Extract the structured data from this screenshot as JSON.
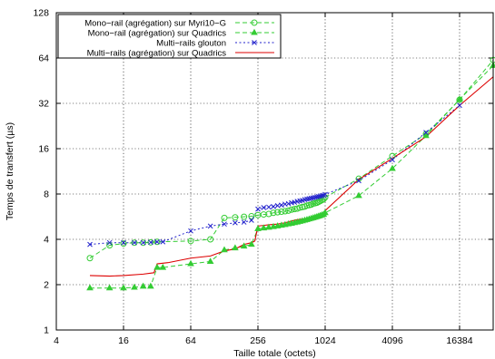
{
  "chart_data": {
    "type": "line",
    "title": "",
    "xlabel": "Taille totale (octets)",
    "ylabel": "Temps de transfert (µs)",
    "xscale": "log2",
    "yscale": "log2",
    "xlim": [
      4,
      32768
    ],
    "ylim": [
      1,
      128
    ],
    "xticks": [
      4,
      16,
      64,
      256,
      1024,
      4096,
      16384
    ],
    "xtick_labels": [
      "4",
      "16",
      "64",
      "256",
      "1024",
      "4096",
      "16384"
    ],
    "yticks": [
      1,
      2,
      4,
      8,
      16,
      32,
      64,
      128
    ],
    "ytick_labels": [
      "1",
      "2",
      "4",
      "8",
      "16",
      "32",
      "64",
      "128"
    ],
    "grid": true,
    "legend_position": "top-left",
    "series": [
      {
        "name": "Mono−rail (agrégation) sur Myri10−G",
        "color": "#33cc33",
        "dash": "dashed",
        "marker": "circle",
        "points": [
          [
            8,
            3.0
          ],
          [
            12,
            3.65
          ],
          [
            16,
            3.75
          ],
          [
            20,
            3.8
          ],
          [
            24,
            3.8
          ],
          [
            28,
            3.82
          ],
          [
            32,
            3.85
          ],
          [
            64,
            3.9
          ],
          [
            96,
            4.0
          ],
          [
            128,
            5.55
          ],
          [
            160,
            5.6
          ],
          [
            192,
            5.65
          ],
          [
            224,
            5.7
          ],
          [
            256,
            5.8
          ],
          [
            288,
            5.85
          ],
          [
            320,
            5.9
          ],
          [
            352,
            6.0
          ],
          [
            384,
            6.05
          ],
          [
            416,
            6.1
          ],
          [
            448,
            6.15
          ],
          [
            480,
            6.2
          ],
          [
            512,
            6.3
          ],
          [
            544,
            6.35
          ],
          [
            576,
            6.4
          ],
          [
            608,
            6.5
          ],
          [
            640,
            6.55
          ],
          [
            672,
            6.6
          ],
          [
            704,
            6.7
          ],
          [
            736,
            6.75
          ],
          [
            768,
            6.8
          ],
          [
            800,
            6.9
          ],
          [
            832,
            6.95
          ],
          [
            864,
            7.0
          ],
          [
            896,
            7.1
          ],
          [
            928,
            7.2
          ],
          [
            960,
            7.3
          ],
          [
            992,
            7.4
          ],
          [
            1024,
            7.6
          ],
          [
            2048,
            10.1
          ],
          [
            4096,
            14.3
          ],
          [
            8192,
            20.0
          ],
          [
            16384,
            33.8
          ],
          [
            32768,
            62.0
          ]
        ]
      },
      {
        "name": "Mono−rail (agrégation) sur Quadrics",
        "color": "#33cc33",
        "dash": "dashed",
        "marker": "triangle",
        "points": [
          [
            8,
            1.9
          ],
          [
            12,
            1.9
          ],
          [
            16,
            1.9
          ],
          [
            20,
            1.92
          ],
          [
            24,
            1.95
          ],
          [
            28,
            1.95
          ],
          [
            32,
            2.6
          ],
          [
            36,
            2.6
          ],
          [
            64,
            2.75
          ],
          [
            96,
            2.85
          ],
          [
            128,
            3.4
          ],
          [
            160,
            3.5
          ],
          [
            192,
            3.6
          ],
          [
            224,
            3.7
          ],
          [
            256,
            4.7
          ],
          [
            288,
            4.75
          ],
          [
            320,
            4.8
          ],
          [
            352,
            4.85
          ],
          [
            384,
            4.9
          ],
          [
            416,
            4.95
          ],
          [
            448,
            5.0
          ],
          [
            480,
            5.05
          ],
          [
            512,
            5.1
          ],
          [
            544,
            5.15
          ],
          [
            576,
            5.2
          ],
          [
            608,
            5.25
          ],
          [
            640,
            5.3
          ],
          [
            672,
            5.35
          ],
          [
            704,
            5.4
          ],
          [
            736,
            5.45
          ],
          [
            768,
            5.5
          ],
          [
            800,
            5.55
          ],
          [
            832,
            5.6
          ],
          [
            864,
            5.65
          ],
          [
            896,
            5.7
          ],
          [
            928,
            5.75
          ],
          [
            960,
            5.8
          ],
          [
            992,
            5.85
          ],
          [
            1024,
            6.0
          ],
          [
            2048,
            7.8
          ],
          [
            4096,
            11.8
          ],
          [
            8192,
            19.5
          ],
          [
            16384,
            34.0
          ],
          [
            32768,
            57.0
          ]
        ]
      },
      {
        "name": "Multi−rails glouton",
        "color": "#2222cc",
        "dash": "dotted",
        "marker": "cross",
        "points": [
          [
            8,
            3.7
          ],
          [
            12,
            3.8
          ],
          [
            16,
            3.8
          ],
          [
            20,
            3.8
          ],
          [
            24,
            3.8
          ],
          [
            28,
            3.82
          ],
          [
            32,
            3.85
          ],
          [
            36,
            3.85
          ],
          [
            64,
            4.55
          ],
          [
            96,
            4.9
          ],
          [
            128,
            5.05
          ],
          [
            160,
            5.15
          ],
          [
            192,
            5.2
          ],
          [
            224,
            5.35
          ],
          [
            256,
            6.35
          ],
          [
            288,
            6.5
          ],
          [
            320,
            6.55
          ],
          [
            352,
            6.6
          ],
          [
            384,
            6.7
          ],
          [
            416,
            6.75
          ],
          [
            448,
            6.85
          ],
          [
            480,
            6.9
          ],
          [
            512,
            7.0
          ],
          [
            544,
            7.05
          ],
          [
            576,
            7.15
          ],
          [
            608,
            7.2
          ],
          [
            640,
            7.25
          ],
          [
            672,
            7.35
          ],
          [
            704,
            7.4
          ],
          [
            736,
            7.45
          ],
          [
            768,
            7.5
          ],
          [
            800,
            7.55
          ],
          [
            832,
            7.6
          ],
          [
            864,
            7.65
          ],
          [
            896,
            7.7
          ],
          [
            928,
            7.75
          ],
          [
            960,
            7.8
          ],
          [
            992,
            7.85
          ],
          [
            1024,
            7.95
          ],
          [
            2048,
            9.8
          ],
          [
            4096,
            13.5
          ],
          [
            8192,
            20.5
          ],
          [
            16384,
            31.0
          ]
        ]
      },
      {
        "name": "Multi−rails (agrégation) sur Quadrics",
        "color": "#dd0000",
        "dash": "solid",
        "marker": "none",
        "points": [
          [
            8,
            2.3
          ],
          [
            12,
            2.28
          ],
          [
            16,
            2.3
          ],
          [
            24,
            2.35
          ],
          [
            30,
            2.4
          ],
          [
            32,
            2.75
          ],
          [
            40,
            2.8
          ],
          [
            64,
            3.0
          ],
          [
            96,
            3.1
          ],
          [
            128,
            3.35
          ],
          [
            160,
            3.45
          ],
          [
            192,
            3.7
          ],
          [
            224,
            3.8
          ],
          [
            240,
            3.9
          ],
          [
            256,
            4.9
          ],
          [
            288,
            4.95
          ],
          [
            320,
            5.0
          ],
          [
            384,
            5.05
          ],
          [
            448,
            5.15
          ],
          [
            512,
            5.3
          ],
          [
            576,
            5.4
          ],
          [
            640,
            5.45
          ],
          [
            704,
            5.5
          ],
          [
            768,
            5.6
          ],
          [
            832,
            5.65
          ],
          [
            896,
            5.75
          ],
          [
            960,
            5.85
          ],
          [
            1024,
            6.2
          ],
          [
            2048,
            10.0
          ],
          [
            4096,
            13.8
          ],
          [
            8192,
            19.2
          ],
          [
            16384,
            31.0
          ],
          [
            32768,
            48.0
          ]
        ]
      }
    ]
  }
}
